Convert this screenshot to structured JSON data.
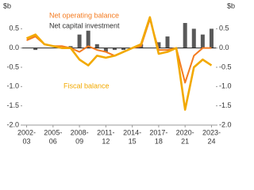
{
  "chart_data": {
    "type": "combo",
    "y_unit": "$b",
    "y2_unit": "$b",
    "categories": [
      [
        "2002-",
        "03"
      ],
      null,
      null,
      [
        "2005-",
        "06"
      ],
      null,
      null,
      [
        "2008-",
        "09"
      ],
      null,
      null,
      [
        "2011-",
        "12"
      ],
      null,
      null,
      [
        "2014-",
        "15"
      ],
      null,
      null,
      [
        "2017-",
        "18"
      ],
      null,
      null,
      [
        "2020-",
        "21"
      ],
      null,
      null,
      [
        "2023-",
        "24"
      ]
    ],
    "series": [
      {
        "name": "Net capital investment",
        "type": "bar",
        "color": "#595959",
        "values": [
          0.0,
          -0.05,
          0.0,
          0.0,
          0.0,
          0.05,
          0.35,
          0.45,
          0.1,
          -0.1,
          -0.05,
          -0.05,
          0.0,
          0.1,
          0.0,
          0.15,
          0.3,
          0.0,
          0.65,
          0.5,
          0.35,
          0.5
        ]
      },
      {
        "name": "Net operating balance",
        "type": "line",
        "color": "#f47b20",
        "values": [
          0.2,
          0.3,
          0.1,
          0.05,
          0.05,
          0.0,
          -0.1,
          0.05,
          -0.05,
          -0.1,
          -0.2,
          -0.1,
          0.0,
          0.05,
          0.75,
          -0.05,
          -0.05,
          0.0,
          -0.9,
          -0.2,
          0.0,
          0.0
        ]
      },
      {
        "name": "Fiscal balance",
        "type": "line",
        "color": "#f2a900",
        "values": [
          0.25,
          0.35,
          0.1,
          0.05,
          0.0,
          0.0,
          -0.3,
          -0.45,
          -0.2,
          -0.25,
          -0.2,
          -0.1,
          0.0,
          0.1,
          0.8,
          -0.15,
          -0.1,
          0.0,
          -1.6,
          -0.5,
          -0.3,
          -0.45
        ]
      }
    ],
    "ylim": [
      -2.0,
      1.0
    ],
    "yticks": [
      0.5,
      {
        "value": 0,
        "label": "0.0"
      },
      -0.5,
      {
        "value": -1,
        "label": "-1.0"
      },
      -1.5,
      {
        "value": -2,
        "label": "-2.0"
      }
    ],
    "y2lim": [
      -2.0,
      1.0
    ],
    "y2ticks": [
      0.5,
      {
        "value": 0,
        "label": "0.0"
      },
      -0.5,
      {
        "value": -1,
        "label": "-1.0"
      },
      -1.5,
      {
        "value": -2,
        "label": "-2.0"
      }
    ]
  }
}
